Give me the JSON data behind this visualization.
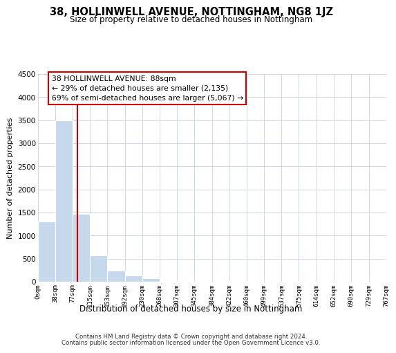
{
  "title": "38, HOLLINWELL AVENUE, NOTTINGHAM, NG8 1JZ",
  "subtitle": "Size of property relative to detached houses in Nottingham",
  "xlabel": "Distribution of detached houses by size in Nottingham",
  "ylabel": "Number of detached properties",
  "bar_color": "#c5d8ec",
  "vline_color": "#cc0000",
  "vline_x": 88,
  "ylim": [
    0,
    4500
  ],
  "bin_edges": [
    0,
    38,
    77,
    115,
    153,
    192,
    230,
    268,
    307,
    345,
    384,
    422,
    460,
    499,
    537,
    575,
    614,
    652,
    690,
    729,
    767
  ],
  "bar_heights": [
    1300,
    3500,
    1470,
    570,
    240,
    130,
    70,
    20,
    0,
    0,
    0,
    15,
    0,
    0,
    0,
    0,
    0,
    0,
    0,
    0
  ],
  "annotation_title": "38 HOLLINWELL AVENUE: 88sqm",
  "annotation_line1": "← 29% of detached houses are smaller (2,135)",
  "annotation_line2": "69% of semi-detached houses are larger (5,067) →",
  "footer_line1": "Contains HM Land Registry data © Crown copyright and database right 2024.",
  "footer_line2": "Contains public sector information licensed under the Open Government Licence v3.0.",
  "tick_labels": [
    "0sqm",
    "38sqm",
    "77sqm",
    "115sqm",
    "153sqm",
    "192sqm",
    "230sqm",
    "268sqm",
    "307sqm",
    "345sqm",
    "384sqm",
    "422sqm",
    "460sqm",
    "499sqm",
    "537sqm",
    "575sqm",
    "614sqm",
    "652sqm",
    "690sqm",
    "729sqm",
    "767sqm"
  ],
  "background_color": "#ffffff",
  "grid_color": "#ccd8e8"
}
